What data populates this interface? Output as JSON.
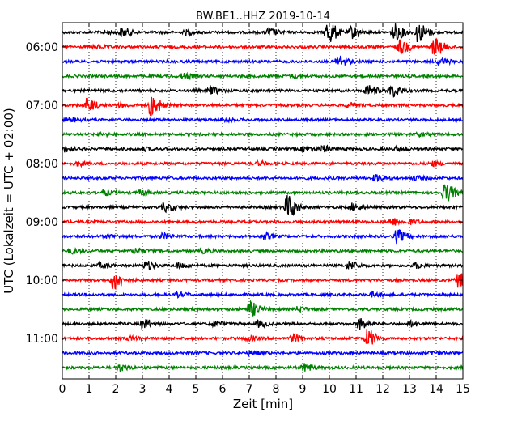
{
  "chart_data": {
    "type": "line",
    "title": "BW.BE1..HHZ 2019-10-14",
    "xlabel": "Zeit  [min]",
    "ylabel": "UTC (Lokalzeit = UTC + 02:00)",
    "xlim": [
      0,
      15
    ],
    "x_ticks": [
      "0",
      "1",
      "2",
      "3",
      "4",
      "5",
      "6",
      "7",
      "8",
      "9",
      "10",
      "11",
      "12",
      "13",
      "14",
      "15"
    ],
    "y_tick_labels": [
      "06:00",
      "07:00",
      "08:00",
      "09:00",
      "10:00",
      "11:00"
    ],
    "grid": "vertical-dotted",
    "colors": [
      "#000000",
      "#ff0000",
      "#0000ff",
      "#008000"
    ],
    "traces": [
      {
        "start": "05:45",
        "events": [
          [
            1.6,
            0.12
          ],
          [
            2.2,
            0.35
          ],
          [
            4.6,
            0.18
          ],
          [
            7.7,
            0.3
          ],
          [
            9.9,
            1.0
          ],
          [
            10.8,
            0.5
          ],
          [
            12.4,
            0.7
          ],
          [
            13.3,
            0.8
          ]
        ]
      },
      {
        "start": "06:00",
        "events": [
          [
            1.2,
            0.12
          ],
          [
            12.6,
            0.6
          ],
          [
            13.9,
            0.75
          ]
        ]
      },
      {
        "start": "06:15",
        "events": [
          [
            10.3,
            0.5
          ],
          [
            14.1,
            0.25
          ]
        ]
      },
      {
        "start": "06:30",
        "events": [
          [
            4.5,
            0.22
          ],
          [
            8.6,
            0.12
          ]
        ]
      },
      {
        "start": "06:45",
        "events": [
          [
            5.5,
            0.3
          ],
          [
            11.4,
            0.45
          ],
          [
            12.3,
            0.5
          ]
        ]
      },
      {
        "start": "07:00",
        "events": [
          [
            0.9,
            0.55
          ],
          [
            2.1,
            0.15
          ],
          [
            3.3,
            0.9
          ],
          [
            10.7,
            0.18
          ]
        ]
      },
      {
        "start": "07:15",
        "events": [
          [
            0.3,
            0.15
          ],
          [
            6.0,
            0.12
          ]
        ]
      },
      {
        "start": "07:30",
        "events": [
          [
            1.4,
            0.1
          ],
          [
            13.3,
            0.12
          ]
        ]
      },
      {
        "start": "07:45",
        "events": [
          [
            0.1,
            0.2
          ],
          [
            3.0,
            0.12
          ],
          [
            9.0,
            0.2
          ],
          [
            9.7,
            0.25
          ],
          [
            12.5,
            0.15
          ]
        ]
      },
      {
        "start": "08:00",
        "events": [
          [
            0.5,
            0.18
          ],
          [
            7.3,
            0.15
          ],
          [
            13.8,
            0.2
          ]
        ]
      },
      {
        "start": "08:15",
        "events": [
          [
            11.7,
            0.25
          ],
          [
            13.2,
            0.15
          ]
        ]
      },
      {
        "start": "08:30",
        "events": [
          [
            1.5,
            0.2
          ],
          [
            2.9,
            0.15
          ],
          [
            14.3,
            0.8
          ]
        ]
      },
      {
        "start": "08:45",
        "events": [
          [
            3.8,
            0.35
          ],
          [
            8.4,
            1.0
          ],
          [
            10.8,
            0.3
          ]
        ]
      },
      {
        "start": "09:00",
        "events": [
          [
            12.3,
            0.3
          ],
          [
            13.0,
            0.15
          ]
        ]
      },
      {
        "start": "09:15",
        "events": [
          [
            1.7,
            0.15
          ],
          [
            3.7,
            0.2
          ],
          [
            7.5,
            0.25
          ],
          [
            12.5,
            0.55
          ]
        ]
      },
      {
        "start": "09:30",
        "events": [
          [
            0.3,
            0.18
          ],
          [
            2.7,
            0.25
          ],
          [
            5.2,
            0.15
          ]
        ]
      },
      {
        "start": "09:45",
        "events": [
          [
            1.4,
            0.2
          ],
          [
            3.1,
            0.35
          ],
          [
            4.3,
            0.25
          ],
          [
            10.7,
            0.35
          ],
          [
            13.2,
            0.2
          ]
        ]
      },
      {
        "start": "10:00",
        "events": [
          [
            1.9,
            0.85
          ],
          [
            14.8,
            0.6
          ]
        ]
      },
      {
        "start": "10:15",
        "events": [
          [
            4.3,
            0.15
          ],
          [
            11.6,
            0.2
          ]
        ]
      },
      {
        "start": "10:30",
        "events": [
          [
            7.0,
            0.6
          ],
          [
            8.8,
            0.18
          ]
        ]
      },
      {
        "start": "10:45",
        "events": [
          [
            3.0,
            0.4
          ],
          [
            5.6,
            0.2
          ],
          [
            7.3,
            0.25
          ],
          [
            11.1,
            0.45
          ],
          [
            13.0,
            0.2
          ]
        ]
      },
      {
        "start": "11:00",
        "events": [
          [
            2.5,
            0.15
          ],
          [
            6.9,
            0.2
          ],
          [
            8.6,
            0.3
          ],
          [
            11.4,
            0.75
          ]
        ]
      },
      {
        "start": "11:15",
        "events": [
          [
            7.0,
            0.15
          ],
          [
            13.8,
            0.12
          ]
        ]
      },
      {
        "start": "11:30",
        "events": [
          [
            2.1,
            0.25
          ],
          [
            9.0,
            0.3
          ]
        ]
      }
    ]
  }
}
